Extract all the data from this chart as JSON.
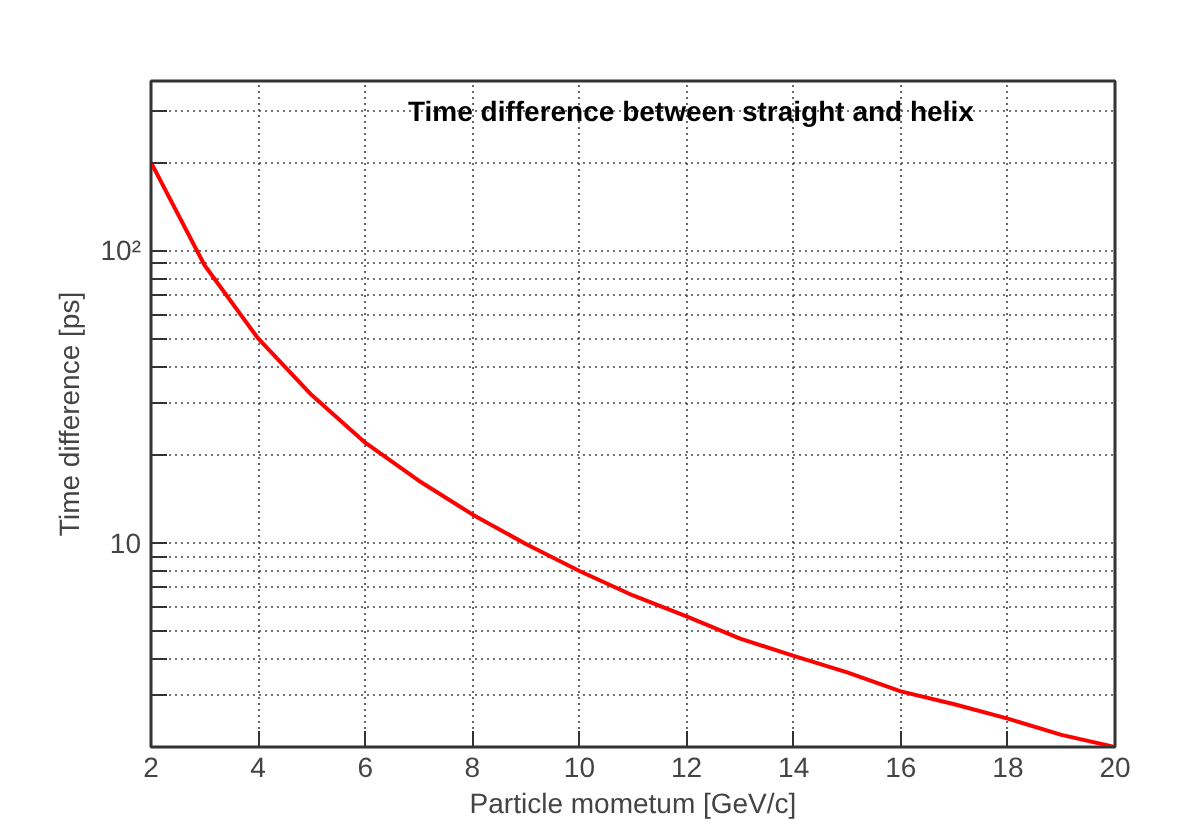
{
  "chart_data": {
    "type": "line",
    "title": "Time difference between straight and helix",
    "xlabel": "Particle mometum [GeV/c]",
    "ylabel": "Time difference [ps]",
    "x": [
      2,
      3,
      4,
      5,
      6,
      7,
      8,
      9,
      10,
      11,
      12,
      13,
      14,
      15,
      16,
      17,
      18,
      19,
      20
    ],
    "series": [
      {
        "color": "#ff0000",
        "values": [
          200,
          89,
          50,
          32,
          22,
          16.3,
          12.5,
          9.9,
          8,
          6.6,
          5.6,
          4.7,
          4.1,
          3.6,
          3.1,
          2.8,
          2.5,
          2.2,
          2.0
        ]
      }
    ],
    "xlim": [
      2,
      20
    ],
    "xticks": [
      2,
      4,
      6,
      8,
      10,
      12,
      14,
      16,
      18,
      20
    ],
    "ylim": [
      2,
      380
    ],
    "log": true,
    "yticks": [
      {
        "value": 2,
        "label": null
      },
      {
        "value": 3,
        "label": null
      },
      {
        "value": 4,
        "label": null
      },
      {
        "value": 5,
        "label": null
      },
      {
        "value": 6,
        "label": null
      },
      {
        "value": 7,
        "label": null
      },
      {
        "value": 8,
        "label": null
      },
      {
        "value": 9,
        "label": null
      },
      {
        "value": 10,
        "label": "10"
      },
      {
        "value": 20,
        "label": null
      },
      {
        "value": 30,
        "label": null
      },
      {
        "value": 40,
        "label": null
      },
      {
        "value": 50,
        "label": null
      },
      {
        "value": 60,
        "label": null
      },
      {
        "value": 70,
        "label": null
      },
      {
        "value": 80,
        "label": null
      },
      {
        "value": 90,
        "label": null
      },
      {
        "value": 100,
        "label": "10²"
      },
      {
        "value": 200,
        "label": null
      },
      {
        "value": 300,
        "label": null
      }
    ],
    "grid": true,
    "line_style": "solid",
    "marker": "none"
  }
}
